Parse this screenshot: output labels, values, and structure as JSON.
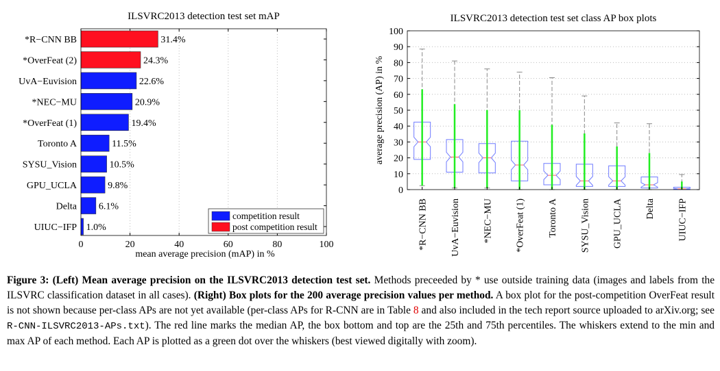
{
  "chart_data": [
    {
      "type": "bar",
      "orientation": "horizontal",
      "title": "ILSVRC2013 detection test set mAP",
      "xlabel": "mean average precision (mAP) in %",
      "xlim": [
        0,
        100
      ],
      "xticks": [
        0,
        20,
        40,
        60,
        80,
        100
      ],
      "grid": true,
      "categories": [
        "*R−CNN BB",
        "*OverFeat (2)",
        "UvA−Euvision",
        "*NEC−MU",
        "*OverFeat (1)",
        "Toronto A",
        "SYSU_Vision",
        "GPU_UCLA",
        "Delta",
        "UIUC−IFP"
      ],
      "values": [
        31.4,
        24.3,
        22.6,
        20.9,
        19.4,
        11.5,
        10.5,
        9.8,
        6.1,
        1.0
      ],
      "value_labels": [
        "31.4%",
        "24.3%",
        "22.6%",
        "20.9%",
        "19.4%",
        "11.5%",
        "10.5%",
        "9.8%",
        "6.1%",
        "1.0%"
      ],
      "groups": [
        "post",
        "post",
        "comp",
        "comp",
        "comp",
        "comp",
        "comp",
        "comp",
        "comp",
        "comp"
      ],
      "legend": {
        "placement": "bottom-right",
        "entries": [
          {
            "key": "comp",
            "label": "competition result",
            "color": "#0f1dff"
          },
          {
            "key": "post",
            "label": "post competition result",
            "color": "#ff1020"
          }
        ]
      }
    },
    {
      "type": "box",
      "title": "ILSVRC2013 detection test set class AP box plots",
      "ylabel": "average precision (AP) in %",
      "ylim": [
        0,
        100
      ],
      "yticks": [
        0,
        10,
        20,
        30,
        40,
        50,
        60,
        70,
        80,
        90,
        100
      ],
      "grid": true,
      "categories": [
        "*R−CNN BB",
        "UvA−Euvision",
        "*NEC−MU",
        "*OverFeat (1)",
        "Toronto A",
        "SYSU_Vision",
        "GPU_UCLA",
        "Delta",
        "UIUC−IFP"
      ],
      "boxes": [
        {
          "min": 2.5,
          "q1": 19,
          "median": 30,
          "q3": 42.5,
          "max": 88.5
        },
        {
          "min": 1,
          "q1": 11,
          "median": 20.5,
          "q3": 31.5,
          "max": 81
        },
        {
          "min": 1,
          "q1": 10.5,
          "median": 20,
          "q3": 29,
          "max": 76
        },
        {
          "min": 0,
          "q1": 5.5,
          "median": 15.5,
          "q3": 30.5,
          "max": 74
        },
        {
          "min": 0,
          "q1": 3,
          "median": 9,
          "q3": 16.5,
          "max": 70.5
        },
        {
          "min": 0,
          "q1": 2,
          "median": 5.5,
          "q3": 16,
          "max": 59
        },
        {
          "min": 0,
          "q1": 2,
          "median": 5.5,
          "q3": 15,
          "max": 42
        },
        {
          "min": 0,
          "q1": 1,
          "median": 3,
          "q3": 8,
          "max": 41.5
        },
        {
          "min": 0,
          "q1": 0,
          "median": 0.5,
          "q3": 1.5,
          "max": 9.5
        }
      ],
      "colors": {
        "box": "#6f7bff",
        "median": "#ff6060",
        "whisker": "#888888",
        "points": "#22ee22"
      }
    }
  ],
  "caption": {
    "label": "Figure 3:",
    "left_bold": "(Left) Mean average precision on the ILSVRC2013 detection test set.",
    "text1": "Methods preceeded by * use outside training data (images and labels from the ILSVRC classification dataset in all cases).",
    "right_bold": "(Right) Box plots for the 200 average precision values per method.",
    "text2": "A box plot for the post-competition OverFeat result is not shown because per-class APs are not yet available (per-class APs for R-CNN are in Table",
    "table_ref": "8",
    "text3": "and also included in the tech report source uploaded to arXiv.org; see",
    "filename": "R-CNN-ILSVRC2013-APs.txt",
    "text4": "). The red line marks the median AP, the box bottom and top are the 25th and 75th percentiles. The whiskers extend to the min and max AP of each method. Each AP is plotted as a green dot over the whiskers (best viewed digitally with zoom)."
  }
}
